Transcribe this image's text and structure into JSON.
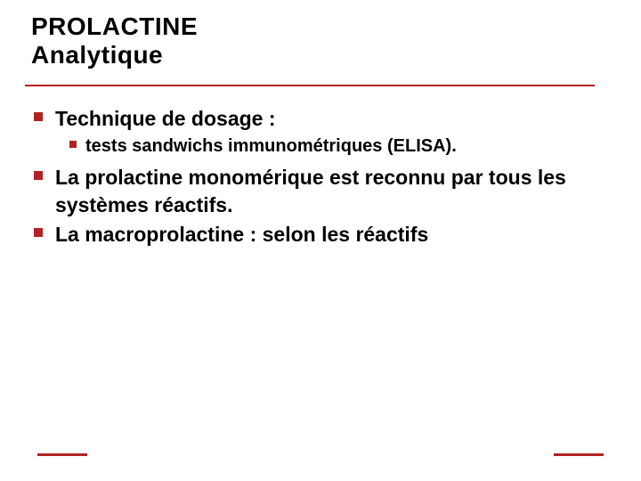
{
  "colors": {
    "accent": "#b22222",
    "text": "#000000",
    "background": "#ffffff"
  },
  "typography": {
    "title_fontsize": 28,
    "title_weight": 900,
    "bullet_fontsize": 23,
    "bullet_weight": 700,
    "subbullet_fontsize": 20,
    "subbullet_weight": 700,
    "font_family": "Arial, Verdana, sans-serif"
  },
  "layout": {
    "slide_width": 720,
    "slide_height": 540,
    "hr_width": 640,
    "hr_thickness": 2,
    "footer_bar_width": 56,
    "footer_bar_thickness": 3,
    "bullet_size": 10,
    "subbullet_size": 8
  },
  "title": {
    "line1": "PROLACTINE",
    "line2": "Analytique"
  },
  "bullets": [
    {
      "text": "Technique de dosage :",
      "sub": [
        {
          "text": "tests sandwichs immunométriques (ELISA)."
        }
      ]
    },
    {
      "text": "La prolactine monomérique est reconnu par tous les systèmes réactifs."
    },
    {
      "text": "La macroprolactine : selon les réactifs"
    }
  ]
}
